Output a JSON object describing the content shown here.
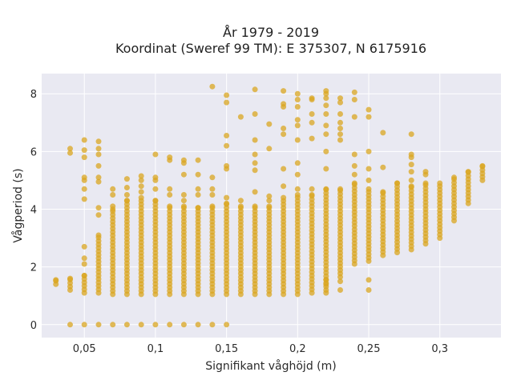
{
  "chart_data": {
    "type": "scatter",
    "title": [
      "År 1979 - 2019",
      "Koordinat (Sweref 99 TM): E 375307, N 6175916"
    ],
    "xlabel": "Signifikant våghöjd (m)",
    "ylabel": "Vågperiod (s)",
    "xlim": [
      0.02,
      0.343
    ],
    "ylim": [
      -0.45,
      8.7
    ],
    "grid": true,
    "x_ticks": [
      {
        "value": 0.05,
        "label": "0,05"
      },
      {
        "value": 0.1,
        "label": "0,1"
      },
      {
        "value": 0.15,
        "label": "0,15"
      },
      {
        "value": 0.2,
        "label": "0,2"
      },
      {
        "value": 0.25,
        "label": "0,25"
      },
      {
        "value": 0.3,
        "label": "0,3"
      }
    ],
    "y_ticks": [
      {
        "value": 0,
        "label": "0"
      },
      {
        "value": 2,
        "label": "2"
      },
      {
        "value": 4,
        "label": "4"
      },
      {
        "value": 6,
        "label": "6"
      },
      {
        "value": 8,
        "label": "8"
      }
    ],
    "marker_color": "#daa520",
    "background_color": "#e9e9f2",
    "gridline_color": "#ffffff",
    "columns": [
      {
        "x": 0.03,
        "y_min": 1.4,
        "y_max": 1.55
      },
      {
        "x": 0.04,
        "y_min": 1.2,
        "y_max": 1.6,
        "extra": [
          0,
          5.95,
          6.1
        ]
      },
      {
        "x": 0.05,
        "y_min": 1.1,
        "y_max": 1.7,
        "extra": [
          0,
          2.1,
          2.3,
          2.7,
          4.35,
          4.7,
          5.0,
          5.1,
          5.8,
          6.05,
          6.4
        ]
      },
      {
        "x": 0.06,
        "y_min": 1.1,
        "y_max": 3.1,
        "extra": [
          0,
          3.8,
          4.05,
          4.95,
          5.1,
          5.5,
          5.9,
          6.1,
          6.35
        ]
      },
      {
        "x": 0.07,
        "y_min": 1.05,
        "y_max": 4.0,
        "extra": [
          0,
          4.1,
          4.5,
          4.7
        ]
      },
      {
        "x": 0.08,
        "y_min": 1.05,
        "y_max": 4.3,
        "extra": [
          0,
          4.5,
          4.75,
          5.05
        ]
      },
      {
        "x": 0.09,
        "y_min": 1.05,
        "y_max": 4.4,
        "extra": [
          0,
          4.6,
          4.8,
          5.0,
          5.15
        ]
      },
      {
        "x": 0.1,
        "y_min": 1.05,
        "y_max": 4.3,
        "extra": [
          0,
          4.7,
          5.0,
          5.1,
          5.9
        ]
      },
      {
        "x": 0.11,
        "y_min": 1.05,
        "y_max": 4.1,
        "extra": [
          0,
          4.5,
          4.7,
          5.7,
          5.8
        ]
      },
      {
        "x": 0.12,
        "y_min": 1.05,
        "y_max": 4.1,
        "extra": [
          0,
          4.3,
          4.5,
          5.2,
          5.6,
          5.7
        ]
      },
      {
        "x": 0.13,
        "y_min": 1.05,
        "y_max": 4.05,
        "extra": [
          0,
          4.5,
          4.7,
          5.2,
          5.7
        ]
      },
      {
        "x": 0.14,
        "y_min": 1.05,
        "y_max": 4.1,
        "extra": [
          0,
          4.5,
          4.7,
          5.1,
          8.25
        ]
      },
      {
        "x": 0.15,
        "y_min": 1.05,
        "y_max": 4.2,
        "extra": [
          0,
          4.4,
          5.4,
          5.5,
          6.2,
          6.55,
          7.7,
          7.95
        ]
      },
      {
        "x": 0.16,
        "y_min": 1.05,
        "y_max": 4.1,
        "extra": [
          4.3,
          7.2
        ]
      },
      {
        "x": 0.17,
        "y_min": 1.05,
        "y_max": 4.1,
        "extra": [
          4.6,
          5.35,
          5.6,
          5.9,
          6.4,
          7.3,
          8.15
        ]
      },
      {
        "x": 0.18,
        "y_min": 1.05,
        "y_max": 4.1,
        "extra": [
          4.3,
          4.45,
          6.1,
          6.95
        ]
      },
      {
        "x": 0.19,
        "y_min": 1.05,
        "y_max": 4.4,
        "extra": [
          4.8,
          5.4,
          6.6,
          6.8,
          7.55,
          7.65,
          8.1
        ]
      },
      {
        "x": 0.2,
        "y_min": 1.05,
        "y_max": 4.5,
        "extra": [
          4.7,
          5.2,
          5.6,
          6.4,
          6.9,
          7.1,
          7.55,
          7.8,
          8.0
        ]
      },
      {
        "x": 0.21,
        "y_min": 1.1,
        "y_max": 4.5,
        "extra": [
          4.7,
          6.45,
          7.0,
          7.3,
          7.8,
          7.85
        ]
      },
      {
        "x": 0.22,
        "y_min": 1.2,
        "y_max": 4.7,
        "extra": [
          1.1,
          1.4,
          1.55,
          5.4,
          6.0,
          6.6,
          6.9,
          7.3,
          7.6,
          7.85,
          8.0,
          8.1
        ]
      },
      {
        "x": 0.23,
        "y_min": 1.65,
        "y_max": 4.7,
        "extra": [
          1.2,
          1.5,
          6.4,
          6.6,
          6.8,
          7.0,
          7.3,
          7.7,
          7.85
        ]
      },
      {
        "x": 0.24,
        "y_min": 2.1,
        "y_max": 4.9,
        "extra": [
          5.2,
          5.5,
          5.9,
          7.2,
          7.8,
          8.05
        ]
      },
      {
        "x": 0.25,
        "y_min": 2.2,
        "y_max": 4.7,
        "extra": [
          1.2,
          1.55,
          5.0,
          5.4,
          6.0,
          7.2,
          7.45
        ]
      },
      {
        "x": 0.26,
        "y_min": 2.4,
        "y_max": 4.6,
        "extra": [
          5.45,
          6.65
        ]
      },
      {
        "x": 0.27,
        "y_min": 2.5,
        "y_max": 4.9
      },
      {
        "x": 0.28,
        "y_min": 2.6,
        "y_max": 4.8,
        "extra": [
          5.0,
          5.3,
          5.55,
          5.8,
          5.9,
          6.6
        ]
      },
      {
        "x": 0.29,
        "y_min": 2.8,
        "y_max": 4.9,
        "extra": [
          5.2,
          5.3
        ]
      },
      {
        "x": 0.3,
        "y_min": 3.0,
        "y_max": 4.9
      },
      {
        "x": 0.31,
        "y_min": 3.6,
        "y_max": 5.1
      },
      {
        "x": 0.32,
        "y_min": 4.2,
        "y_max": 5.3
      },
      {
        "x": 0.33,
        "y_min": 5.0,
        "y_max": 5.5
      }
    ]
  }
}
